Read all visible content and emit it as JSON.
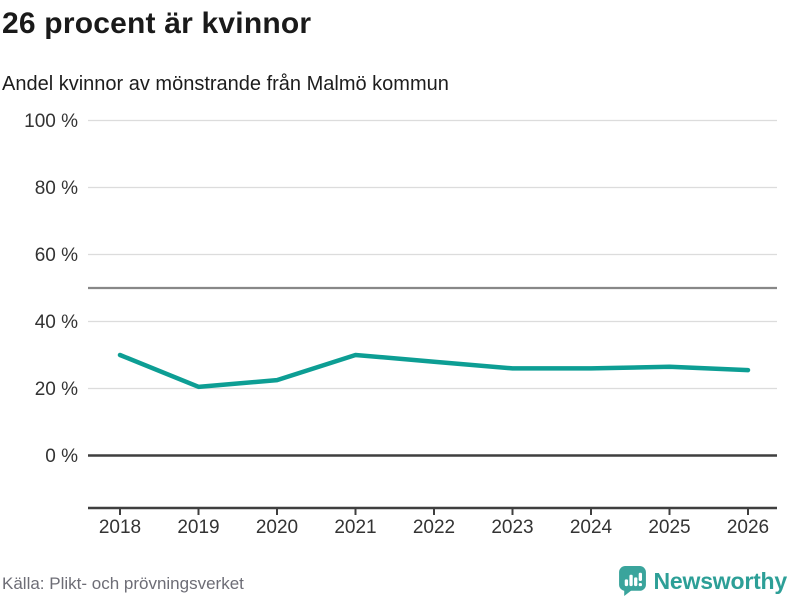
{
  "header": {
    "title": "26 procent är kvinnor",
    "subtitle": "Andel kvinnor av mönstrande från Malmö kommun"
  },
  "chart_data": {
    "type": "line",
    "title": "26 procent är kvinnor",
    "subtitle": "Andel kvinnor av mönstrande från Malmö kommun",
    "x": [
      "2018",
      "2019",
      "2020",
      "2021",
      "2022",
      "2023",
      "2024",
      "2025",
      "2026"
    ],
    "series": [
      {
        "name": "Andel kvinnor av mönstrande",
        "values": [
          30,
          20.5,
          22.5,
          30,
          28,
          26,
          26,
          26.5,
          25.5
        ],
        "color": "#0d9e94"
      }
    ],
    "ylim": [
      0,
      100
    ],
    "y_ticks": [
      {
        "value": 0,
        "label": "0 %"
      },
      {
        "value": 20,
        "label": "20 %"
      },
      {
        "value": 40,
        "label": "40 %"
      },
      {
        "value": 60,
        "label": "60 %"
      },
      {
        "value": 80,
        "label": "80 %"
      },
      {
        "value": 100,
        "label": "100 %"
      }
    ],
    "reference_line": {
      "value": 50
    },
    "grid": "horizontal",
    "legend": "none"
  },
  "footer": {
    "source": "Källa: Plikt- och prövningsverket",
    "brand": "Newsworthy"
  },
  "colors": {
    "line": "#0d9e94",
    "grid_light": "#dcdcdc",
    "grid_reference": "#888888",
    "axis_dark": "#3f3f3f",
    "text_axis": "#333333",
    "text_muted": "#6d6d76",
    "brand_teal": "#2d9f97",
    "brand_icon": "#3aa49c"
  }
}
